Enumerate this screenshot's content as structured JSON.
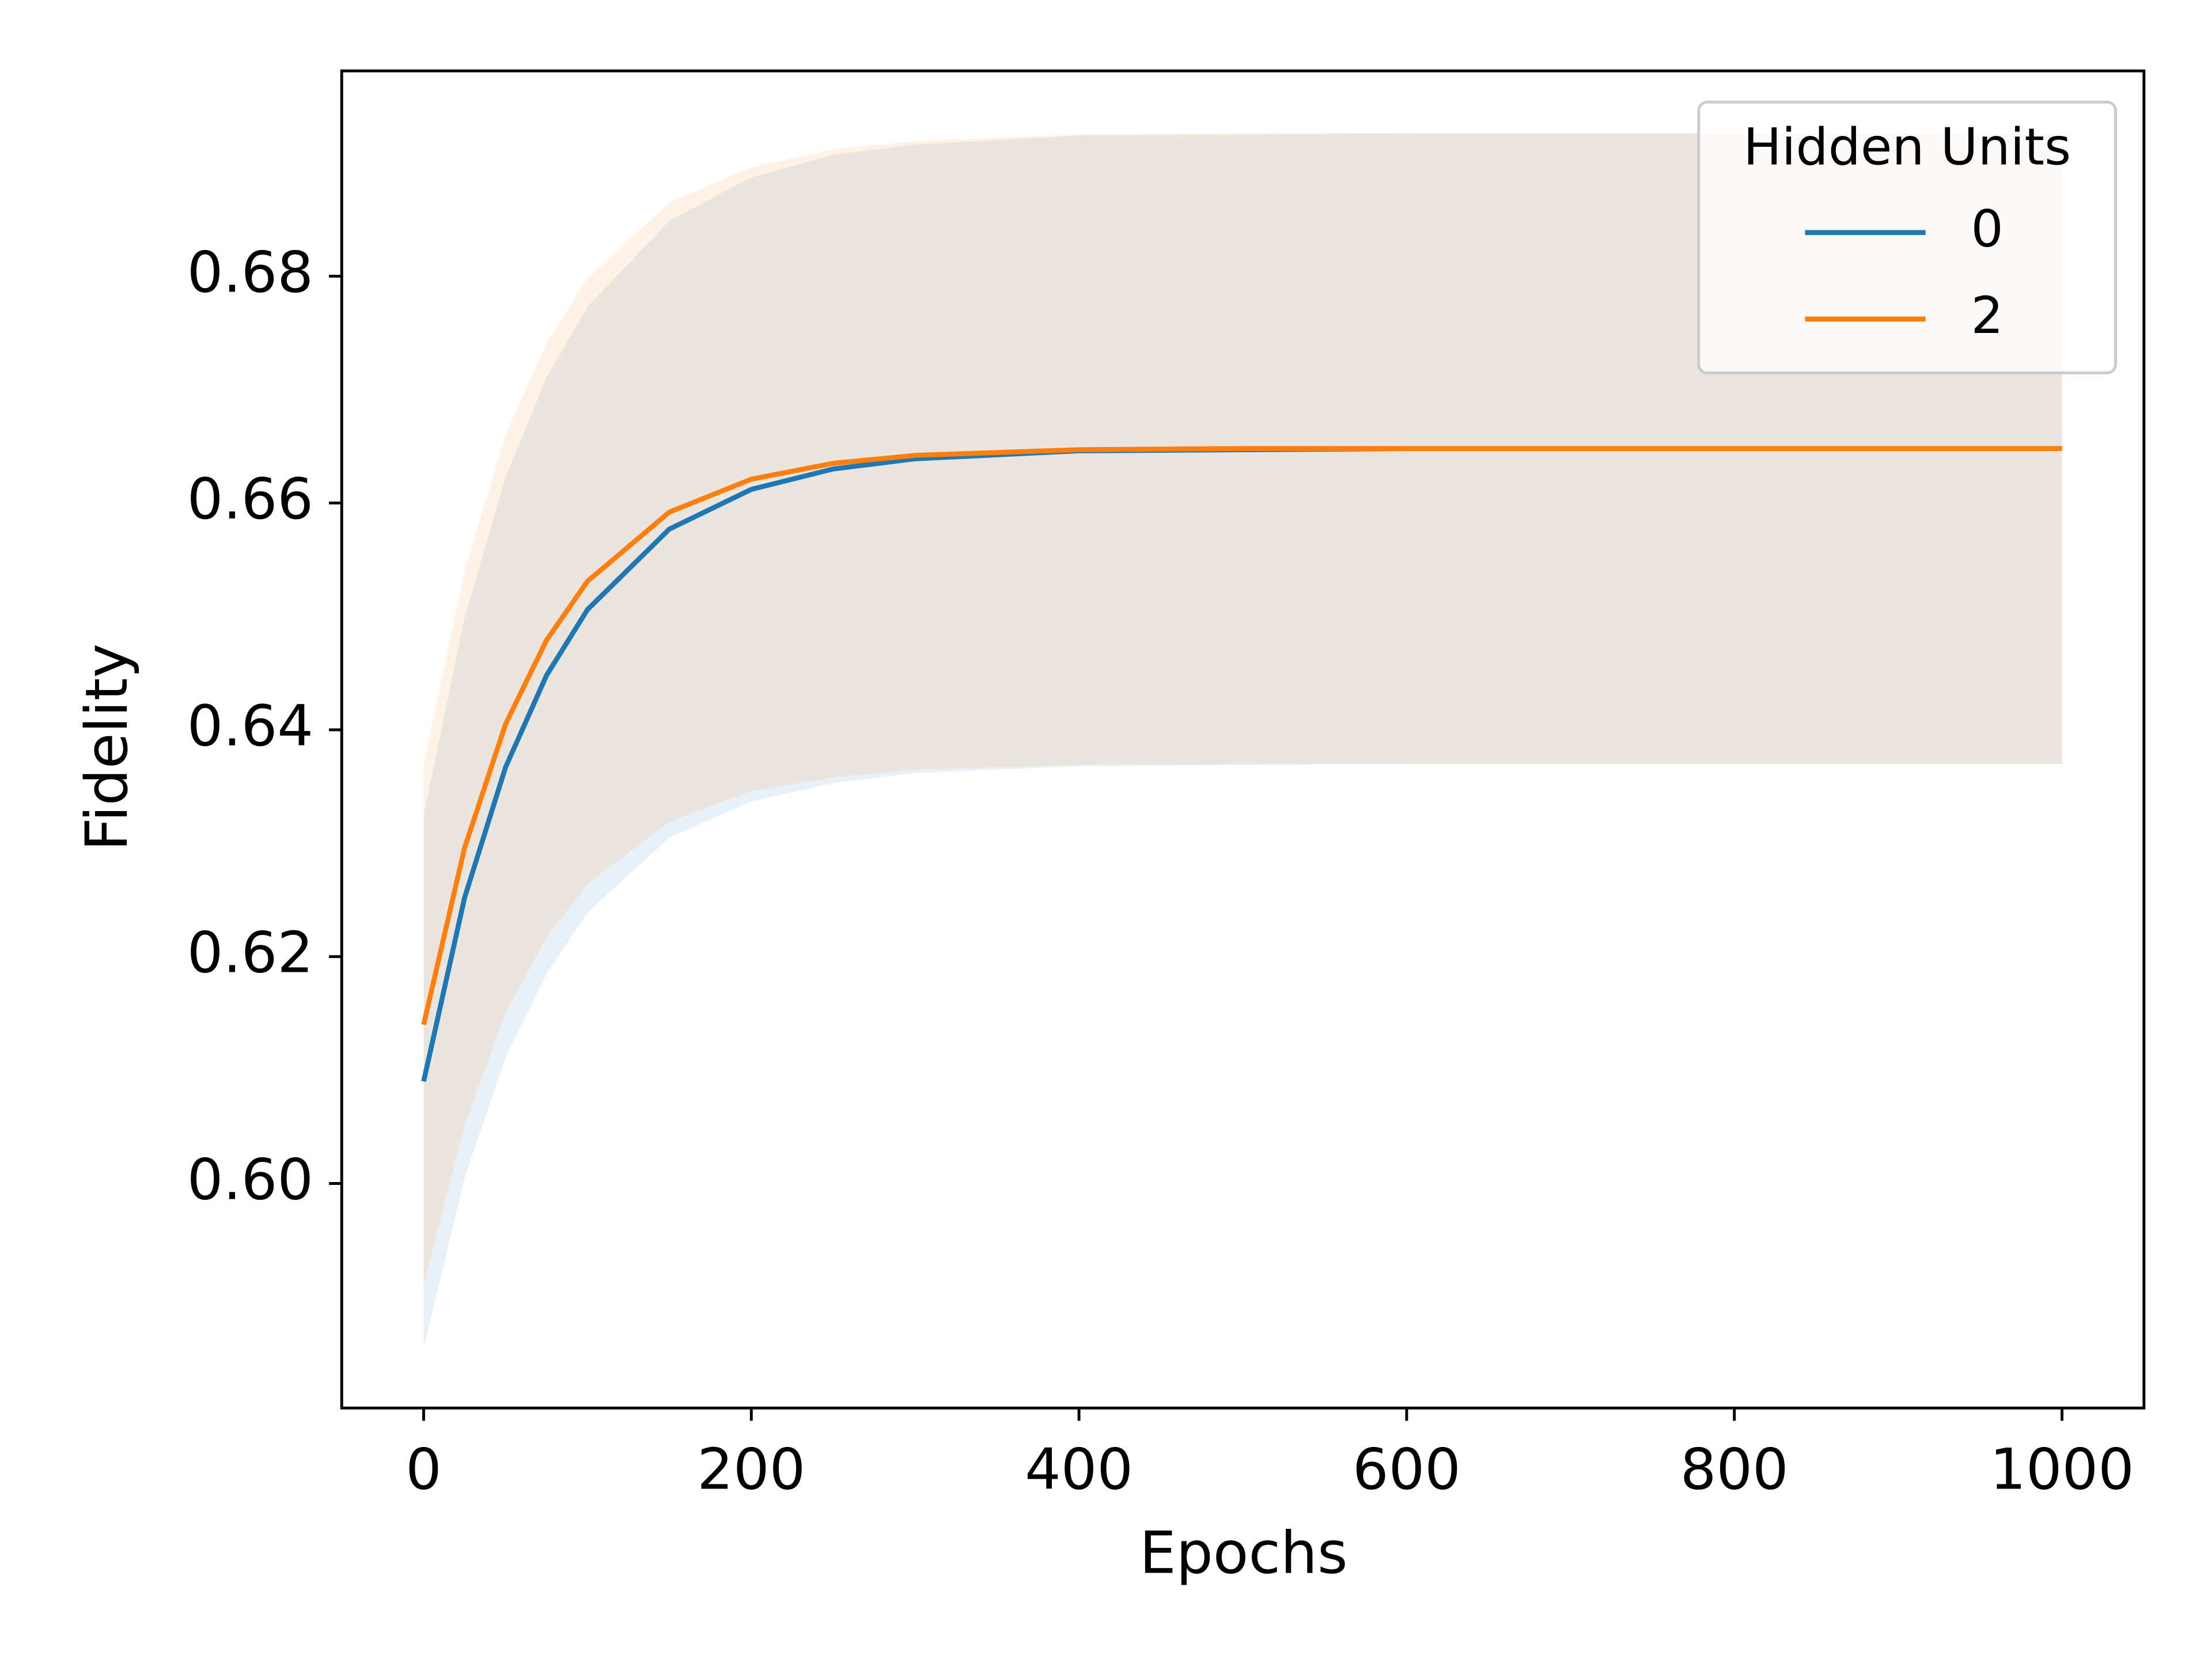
{
  "chart_data": {
    "type": "line",
    "xlabel": "Epochs",
    "ylabel": "Fidelity",
    "legend_title": "Hidden Units",
    "legend_position": "upper right",
    "x": [
      0,
      25,
      50,
      75,
      100,
      150,
      200,
      250,
      300,
      400,
      500,
      600,
      700,
      800,
      900,
      1000
    ],
    "series": [
      {
        "name": "0",
        "color": "#1f77b4",
        "values": [
          0.609,
          0.6252,
          0.6367,
          0.6448,
          0.6506,
          0.6577,
          0.6612,
          0.663,
          0.6639,
          0.6646,
          0.6647,
          0.6648,
          0.6648,
          0.6648,
          0.6648,
          0.6648
        ],
        "lower": [
          0.5855,
          0.6005,
          0.6111,
          0.6185,
          0.6239,
          0.6305,
          0.6337,
          0.6353,
          0.6362,
          0.6368,
          0.6369,
          0.637,
          0.637,
          0.637,
          0.637,
          0.637
        ],
        "upper": [
          0.6325,
          0.6499,
          0.6623,
          0.6711,
          0.6773,
          0.6849,
          0.6887,
          0.6907,
          0.6916,
          0.6924,
          0.6925,
          0.6926,
          0.6926,
          0.6926,
          0.6926,
          0.6926
        ]
      },
      {
        "name": "2",
        "color": "#ff7f0e",
        "values": [
          0.614,
          0.6296,
          0.6405,
          0.6479,
          0.6531,
          0.6592,
          0.6621,
          0.6635,
          0.6642,
          0.6647,
          0.6648,
          0.6648,
          0.6648,
          0.6648,
          0.6648,
          0.6648
        ],
        "lower": [
          0.591,
          0.6051,
          0.615,
          0.6217,
          0.6264,
          0.6319,
          0.6346,
          0.6358,
          0.6365,
          0.6369,
          0.637,
          0.637,
          0.637,
          0.637,
          0.637,
          0.637
        ],
        "upper": [
          0.637,
          0.6541,
          0.666,
          0.6741,
          0.6798,
          0.6865,
          0.6896,
          0.6912,
          0.6919,
          0.6925,
          0.6926,
          0.6926,
          0.6926,
          0.6926,
          0.6926,
          0.6926
        ]
      }
    ],
    "band_opacity": 0.1,
    "xlim": [
      -50,
      1050
    ],
    "xticks": [
      0,
      200,
      400,
      600,
      800,
      1000
    ],
    "ylim": [
      0.5802,
      0.6981
    ],
    "yticks": [
      {
        "value": 0.6,
        "label": "0.60"
      },
      0.62,
      0.64,
      0.66,
      0.68
    ],
    "grid": false
  }
}
